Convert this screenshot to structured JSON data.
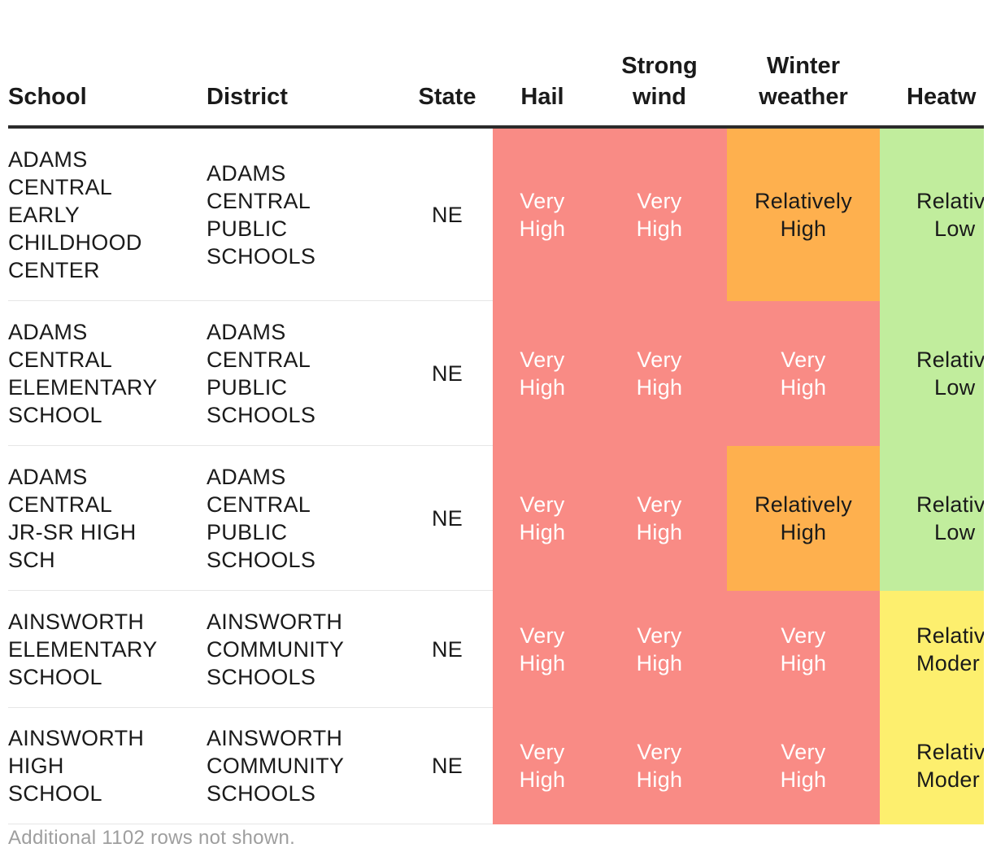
{
  "table": {
    "headers": {
      "school": "School",
      "district": "District",
      "state": "State",
      "hail": "Hail",
      "strong_wind_line1": "Strong",
      "strong_wind_line2": "wind",
      "winter_line1": "Winter",
      "winter_line2": "weather",
      "heatwave": "Heatw"
    },
    "rows": [
      {
        "school": [
          "ADAMS",
          "CENTRAL",
          "EARLY",
          "CHILDHOOD",
          "CENTER"
        ],
        "district": [
          "ADAMS",
          "CENTRAL",
          "PUBLIC",
          "SCHOOLS"
        ],
        "state": "NE",
        "hail": [
          "Very",
          "High"
        ],
        "wind": [
          "Very",
          "High"
        ],
        "winter": [
          "Relatively",
          "High"
        ],
        "heat": [
          "Relativ",
          "Low"
        ]
      },
      {
        "school": [
          "ADAMS",
          "CENTRAL",
          "ELEMENTARY",
          "SCHOOL"
        ],
        "district": [
          "ADAMS",
          "CENTRAL",
          "PUBLIC",
          "SCHOOLS"
        ],
        "state": "NE",
        "hail": [
          "Very",
          "High"
        ],
        "wind": [
          "Very",
          "High"
        ],
        "winter": [
          "Very",
          "High"
        ],
        "heat": [
          "Relativ",
          "Low"
        ]
      },
      {
        "school": [
          "ADAMS",
          "CENTRAL",
          "JR-SR HIGH",
          "SCH"
        ],
        "district": [
          "ADAMS",
          "CENTRAL",
          "PUBLIC",
          "SCHOOLS"
        ],
        "state": "NE",
        "hail": [
          "Very",
          "High"
        ],
        "wind": [
          "Very",
          "High"
        ],
        "winter": [
          "Relatively",
          "High"
        ],
        "heat": [
          "Relativ",
          "Low"
        ]
      },
      {
        "school": [
          "AINSWORTH",
          "ELEMENTARY",
          "SCHOOL"
        ],
        "district": [
          "AINSWORTH",
          "COMMUNITY",
          "SCHOOLS"
        ],
        "state": "NE",
        "hail": [
          "Very",
          "High"
        ],
        "wind": [
          "Very",
          "High"
        ],
        "winter": [
          "Very",
          "High"
        ],
        "heat": [
          "Relativ",
          "Moder"
        ]
      },
      {
        "school": [
          "AINSWORTH",
          "HIGH",
          "SCHOOL"
        ],
        "district": [
          "AINSWORTH",
          "COMMUNITY",
          "SCHOOLS"
        ],
        "state": "NE",
        "hail": [
          "Very",
          "High"
        ],
        "wind": [
          "Very",
          "High"
        ],
        "winter": [
          "Very",
          "High"
        ],
        "heat": [
          "Relativ",
          "Moder"
        ]
      }
    ],
    "footer_note": "Additional 1102 rows not shown."
  },
  "colors": {
    "very_high": "#f98b85",
    "relatively_high": "#feb04e",
    "relatively_low": "#c1ed9d",
    "relatively_moderate": "#fdef6e"
  }
}
